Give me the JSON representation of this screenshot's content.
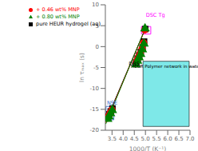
{
  "chart_data": {
    "type": "scatter",
    "xlabel": "1000/T (K⁻¹)",
    "ylabel": "ln τₘₐₓ (s)",
    "xlim": [
      3.2,
      7.0
    ],
    "ylim": [
      -20,
      10
    ],
    "xticks": [
      3.5,
      {
        "value": 4.0,
        "label": "4.0"
      },
      4.5,
      {
        "value": 5.0,
        "label": "5.0"
      },
      5.5,
      {
        "value": 6.0,
        "label": "6.0"
      },
      6.5,
      {
        "value": 7.0,
        "label": "7.0"
      }
    ],
    "yticks": [
      -20,
      -15,
      -10,
      -5,
      0,
      5,
      10
    ],
    "legend": "upper left",
    "series": [
      {
        "type": "line",
        "color": "black",
        "x": [
          3.22,
          5.02
        ],
        "values": [
          -17.9,
          4.6
        ]
      },
      {
        "type": "line",
        "color": "red",
        "x": [
          3.22,
          5.0
        ],
        "values": [
          -18.2,
          4.3
        ]
      },
      {
        "type": "line",
        "color": "green",
        "x": [
          3.22,
          5.01
        ],
        "values": [
          -18.5,
          4.6
        ]
      },
      {
        "type": "scatter",
        "name": "pure HEUR hydrogel (aq)",
        "color": "black",
        "marker": "square",
        "x": [
          3.32,
          3.38,
          3.44,
          3.52,
          4.58,
          4.65,
          4.72,
          4.79,
          4.87,
          4.94,
          4.99
        ],
        "values": [
          -16.8,
          -16.2,
          -15.5,
          -14.8,
          -3.8,
          -2.9,
          -2.1,
          -1.3,
          -0.2,
          1.2,
          4.2
        ]
      },
      {
        "type": "scatter",
        "name": "+ 0.46 wt% MNP",
        "color": "red",
        "marker": "circle",
        "x": [
          3.3,
          3.36,
          3.42,
          3.5,
          4.57,
          4.63,
          4.7,
          4.77,
          4.85,
          4.92,
          4.97
        ],
        "values": [
          -17.1,
          -16.5,
          -15.8,
          -15.1,
          -4.1,
          -3.2,
          -2.4,
          -1.6,
          -0.5,
          0.9,
          4.0
        ]
      },
      {
        "type": "scatter",
        "name": "+ 0.80 wt% MNP",
        "color": "green",
        "marker": "triangle",
        "x": [
          3.3,
          3.36,
          3.43,
          3.51,
          4.57,
          4.64,
          4.71,
          4.78,
          4.86,
          4.93,
          4.98
        ],
        "values": [
          -17.3,
          -16.7,
          -16.0,
          -15.2,
          -4.3,
          -3.4,
          -2.6,
          -1.8,
          -0.7,
          0.7,
          4.3
        ]
      }
    ],
    "annotations": [
      {
        "type": "text",
        "text": "DRS",
        "x": 4.25,
        "y": -4.5,
        "color": "black"
      },
      {
        "type": "rect",
        "x": 3.23,
        "y": -17.5,
        "width": 0.35,
        "height": 3.2,
        "color": "#3366cc"
      },
      {
        "type": "text",
        "text": "NSE",
        "x": 3.27,
        "y": -13.8,
        "color": "#3366cc"
      },
      {
        "type": "rect",
        "x": 4.82,
        "y": 3.0,
        "width": 0.42,
        "height": 1.8,
        "color": "magenta"
      },
      {
        "type": "text",
        "text": "DSC Tg",
        "x": 5.02,
        "y": 7.2,
        "color": "magenta"
      },
      {
        "type": "arrow",
        "x": 4.52,
        "y": -3.2,
        "x2": 4.85,
        "y2": -1.5,
        "color": "darkgreen"
      }
    ],
    "inset": {
      "title": "HEUR Polymer network in water",
      "color": "#7ee8e8"
    }
  }
}
